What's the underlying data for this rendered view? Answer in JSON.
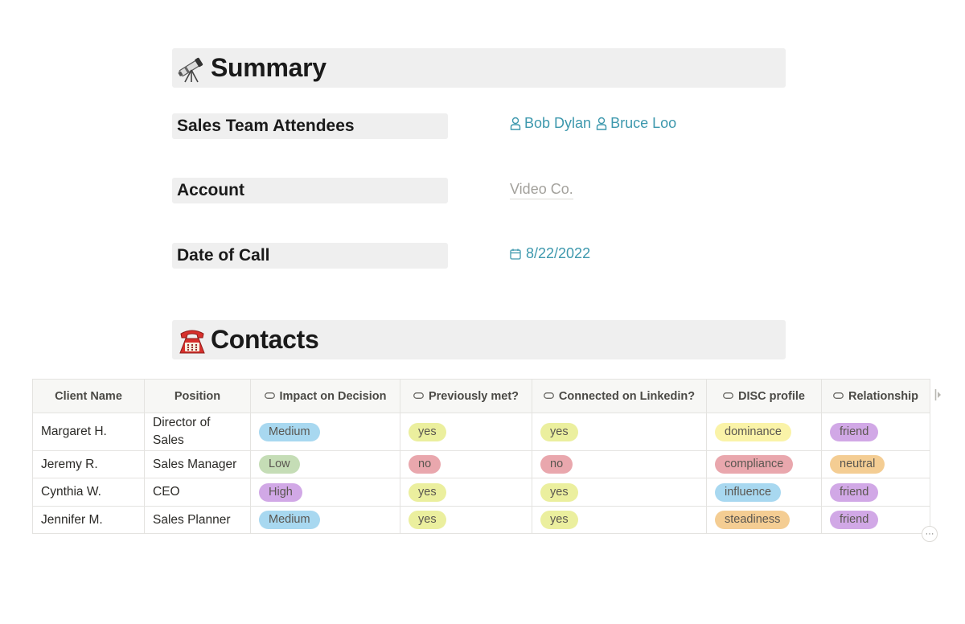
{
  "summary": {
    "title": "Summary",
    "icon": "telescope-icon"
  },
  "properties": {
    "attendees": {
      "label": "Sales Team Attendees",
      "people": [
        "Bob Dylan",
        "Bruce Loo"
      ]
    },
    "account": {
      "label": "Account",
      "value": "Video Co."
    },
    "date": {
      "label": "Date of Call",
      "value": "8/22/2022"
    }
  },
  "contacts": {
    "title": "Contacts",
    "icon": "telephone-icon"
  },
  "table": {
    "headers": [
      "Client Name",
      "Position",
      "Impact on Decision",
      "Previously met?",
      "Connected on Linkedin?",
      "DISC profile",
      "Relationship"
    ],
    "rows": [
      {
        "name": "Margaret H.",
        "position": "Director of Sales",
        "impact": "Medium",
        "met": "yes",
        "linkedin": "yes",
        "disc": "dominance",
        "relationship": "friend"
      },
      {
        "name": "Jeremy R.",
        "position": "Sales Manager",
        "impact": "Low",
        "met": "no",
        "linkedin": "no",
        "disc": "compliance",
        "relationship": "neutral"
      },
      {
        "name": "Cynthia W.",
        "position": "CEO",
        "impact": "High",
        "met": "yes",
        "linkedin": "yes",
        "disc": "influence",
        "relationship": "friend"
      },
      {
        "name": "Jennifer M.",
        "position": "Sales Planner",
        "impact": "Medium",
        "met": "yes",
        "linkedin": "yes",
        "disc": "steadiness",
        "relationship": "friend"
      }
    ]
  },
  "colors": {
    "link": "#3d98ad",
    "blue": "#a8d8f0",
    "green": "#c5ddb6",
    "purple": "#d1a8e6",
    "yellow": "#ebef9e",
    "red": "#e9a7ad",
    "orange": "#f4cd93",
    "lightyellow": "#faf3a8"
  },
  "more_button": "···"
}
